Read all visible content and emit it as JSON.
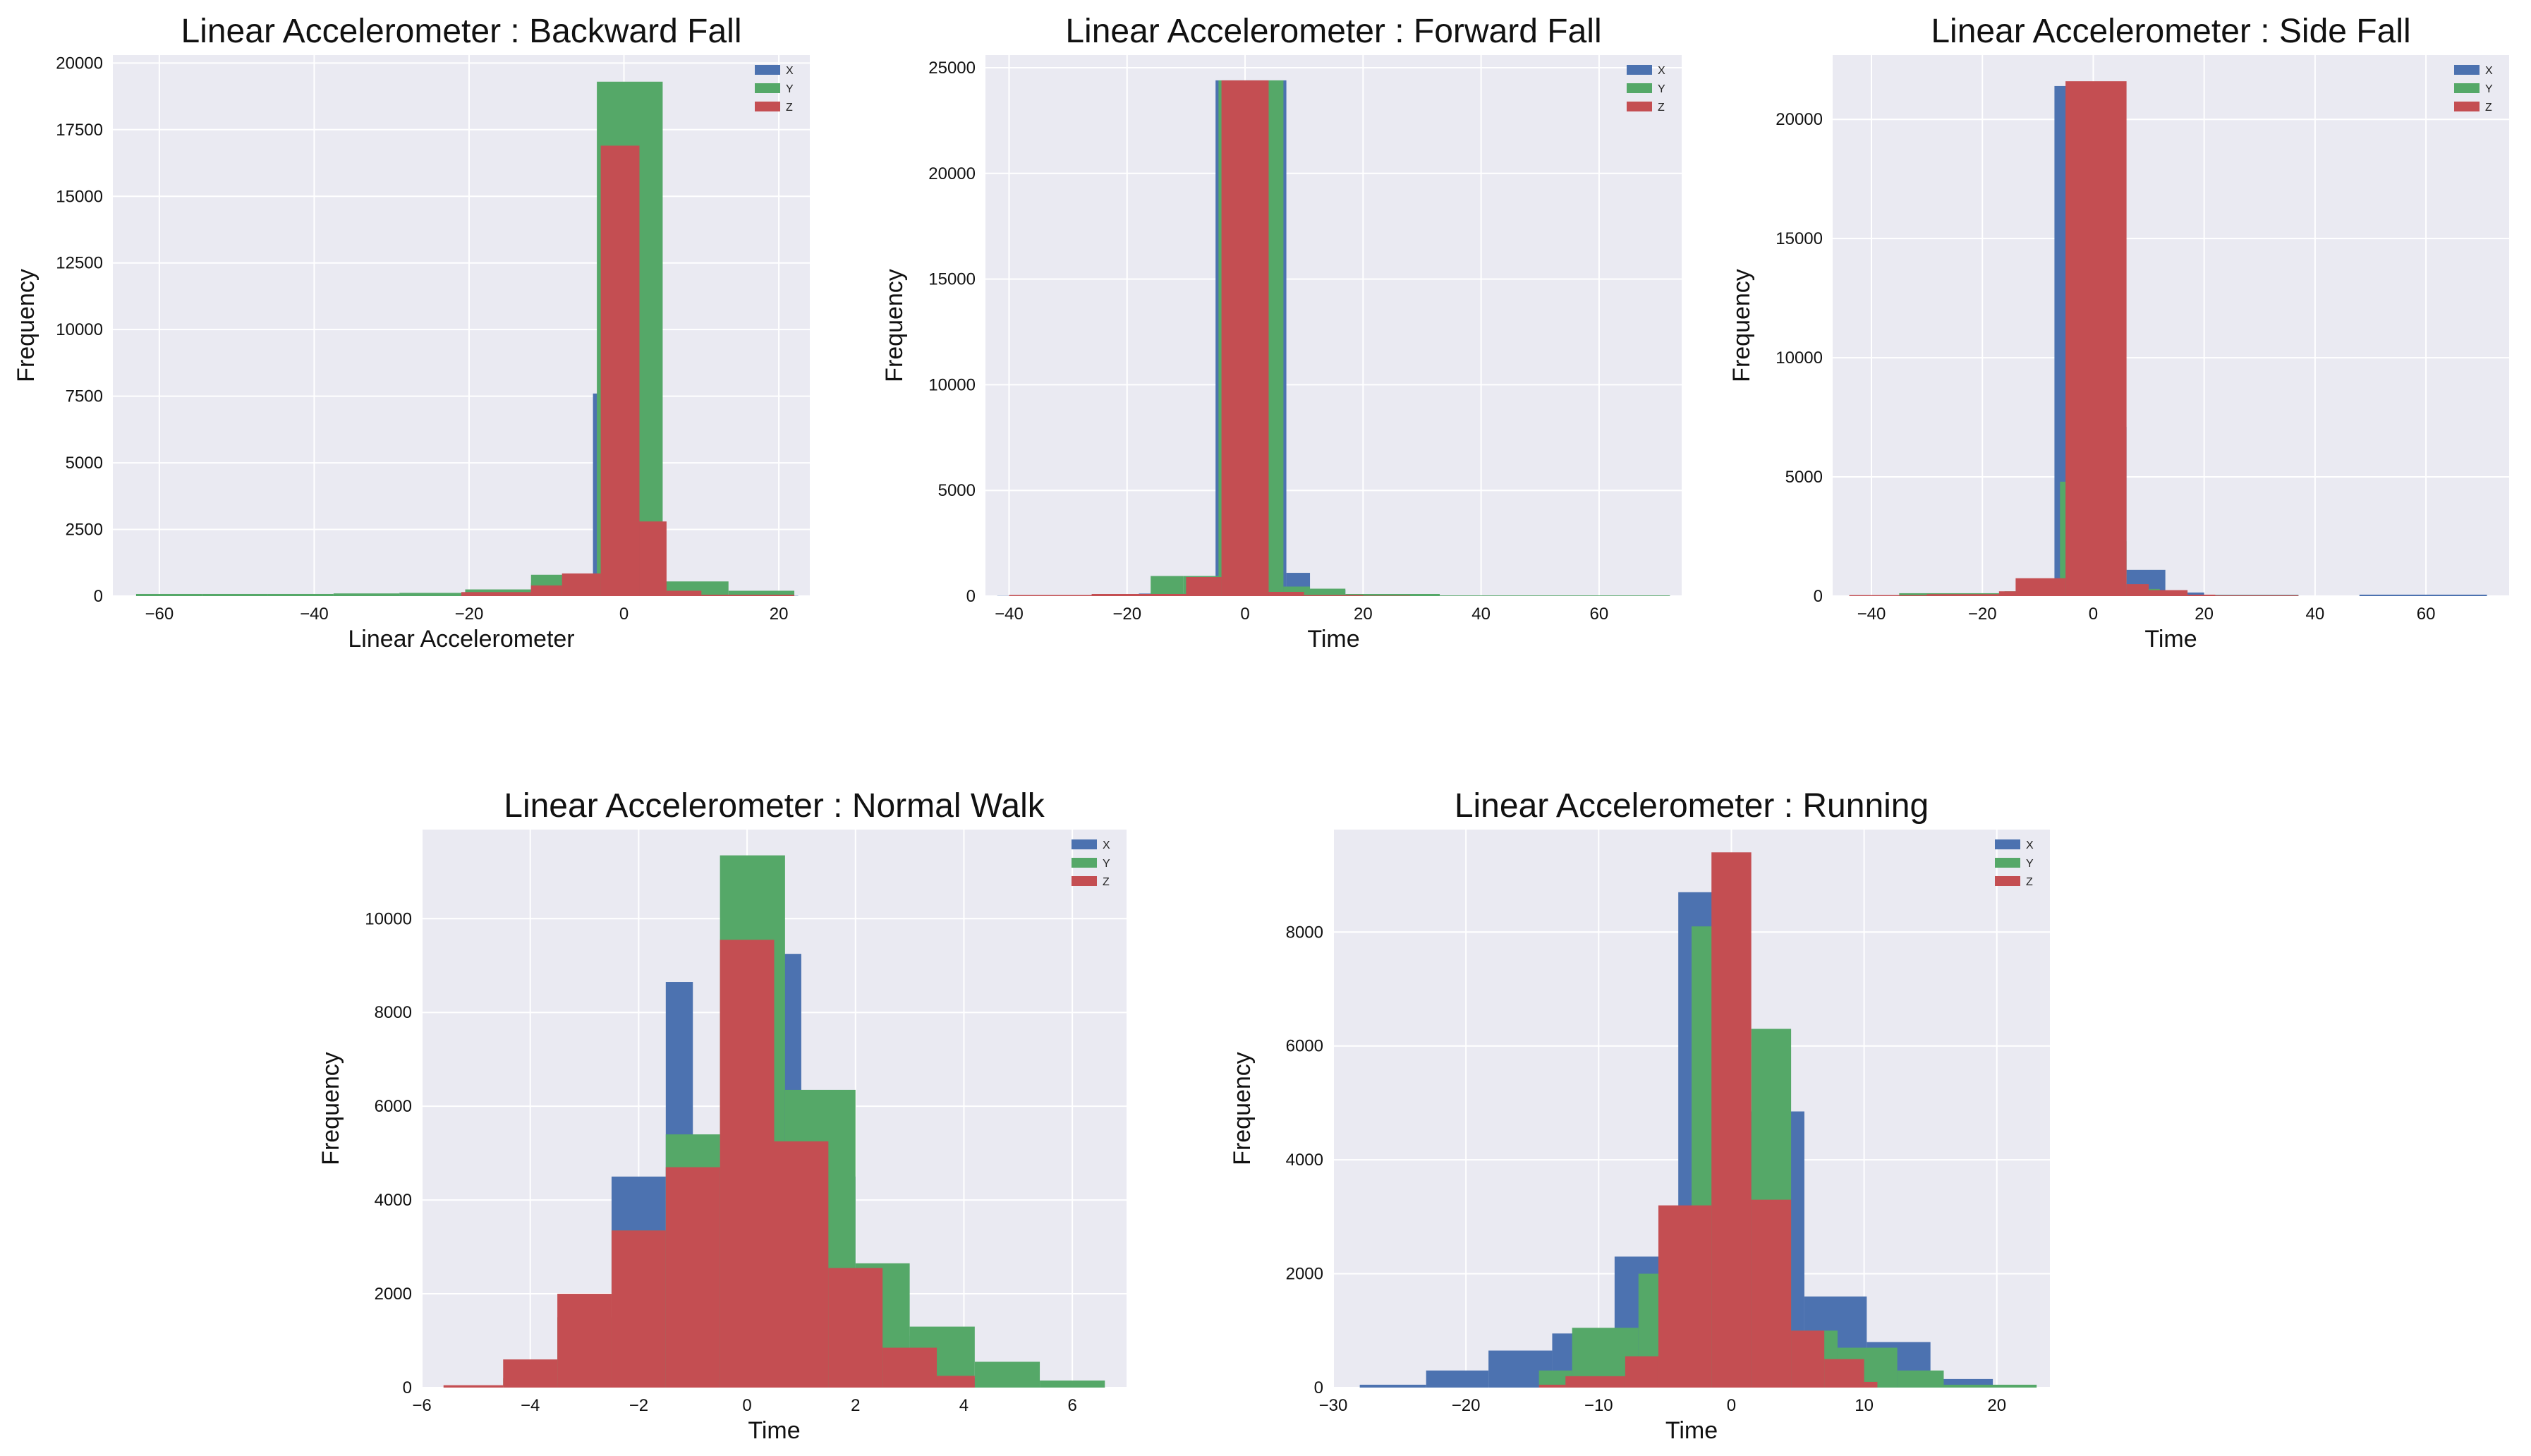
{
  "colors": {
    "X": "#4c72b0",
    "Y": "#55a868",
    "Z": "#c44e52",
    "plot_bg": "#eaeaf2",
    "grid": "#ffffff"
  },
  "chart_data": [
    {
      "type": "bar",
      "title": "Linear Accelerometer : Backward Fall",
      "xlabel": "Linear Accelerometer",
      "ylabel": "Frequency",
      "xlim": [
        -66,
        24
      ],
      "ylim": [
        0,
        20300
      ],
      "xticks": [
        -60,
        -40,
        -20,
        0,
        20
      ],
      "yticks": [
        0,
        2500,
        5000,
        7500,
        10000,
        12500,
        15000,
        17500,
        20000
      ],
      "legend": [
        "X",
        "Y",
        "Z"
      ],
      "series": [
        {
          "name": "X",
          "bins": [
            [
              -63.0,
              -54.5,
              10
            ],
            [
              -54.5,
              -46.0,
              8
            ],
            [
              -46.0,
              -37.5,
              15
            ],
            [
              -37.5,
              -29.0,
              30
            ],
            [
              -29.0,
              -20.5,
              60
            ],
            [
              -20.5,
              -12.0,
              180
            ],
            [
              -12.0,
              -4.0,
              500
            ],
            [
              -4.0,
              -3.0,
              7600
            ],
            [
              -3.0,
              3.5,
              7600
            ],
            [
              3.5,
              12.0,
              300
            ],
            [
              12.0,
              20.5,
              50
            ],
            [
              20.5,
              22.5,
              10
            ]
          ]
        },
        {
          "name": "Y",
          "bins": [
            [
              -63.0,
              -54.5,
              80
            ],
            [
              -54.5,
              -46.0,
              80
            ],
            [
              -46.0,
              -37.5,
              80
            ],
            [
              -37.5,
              -29.0,
              100
            ],
            [
              -29.0,
              -20.5,
              120
            ],
            [
              -20.5,
              -12.0,
              250
            ],
            [
              -12.0,
              -7.0,
              800
            ],
            [
              -7.0,
              -3.5,
              800
            ],
            [
              -3.5,
              5.0,
              19300
            ],
            [
              5.0,
              13.5,
              550
            ],
            [
              13.5,
              22.0,
              200
            ]
          ]
        },
        {
          "name": "Z",
          "bins": [
            [
              -21.0,
              -12.0,
              150
            ],
            [
              -12.0,
              -8.0,
              400
            ],
            [
              -8.0,
              -3.0,
              850
            ],
            [
              -3.0,
              2.0,
              16900
            ],
            [
              2.0,
              5.5,
              2800
            ],
            [
              5.5,
              10.0,
              200
            ],
            [
              10.0,
              22.0,
              50
            ]
          ]
        }
      ]
    },
    {
      "type": "bar",
      "title": "Linear Accelerometer : Forward Fall",
      "xlabel": "Time",
      "ylabel": "Frequency",
      "xlim": [
        -44,
        74
      ],
      "ylim": [
        0,
        25600
      ],
      "xticks": [
        -40,
        -20,
        0,
        20,
        40,
        60
      ],
      "yticks": [
        0,
        5000,
        10000,
        15000,
        20000,
        25000
      ],
      "legend": [
        "X",
        "Y",
        "Z"
      ],
      "series": [
        {
          "name": "X",
          "bins": [
            [
              -42.0,
              -30.0,
              10
            ],
            [
              -30.0,
              -18.0,
              30
            ],
            [
              -18.0,
              -10.0,
              120
            ],
            [
              -10.0,
              -5.0,
              600
            ],
            [
              -5.0,
              7.0,
              24400
            ],
            [
              7.0,
              11.0,
              1100
            ],
            [
              11.0,
              17.0,
              300
            ],
            [
              17.0,
              26.0,
              50
            ],
            [
              26.0,
              72.0,
              10
            ]
          ]
        },
        {
          "name": "Y",
          "bins": [
            [
              -40.0,
              -24.0,
              20
            ],
            [
              -24.0,
              -16.0,
              100
            ],
            [
              -16.0,
              -10.5,
              950
            ],
            [
              -10.5,
              -4.5,
              950
            ],
            [
              -4.5,
              6.5,
              24400
            ],
            [
              6.5,
              11.0,
              450
            ],
            [
              11.0,
              17.0,
              350
            ],
            [
              17.0,
              33.0,
              100
            ],
            [
              33.0,
              72.0,
              30
            ]
          ]
        },
        {
          "name": "Z",
          "bins": [
            [
              -40.0,
              -26.0,
              50
            ],
            [
              -26.0,
              -10.0,
              100
            ],
            [
              -10.0,
              -4.0,
              900
            ],
            [
              -4.0,
              4.0,
              24400
            ],
            [
              4.0,
              10.0,
              200
            ],
            [
              10.0,
              20.0,
              50
            ],
            [
              20.0,
              28.0,
              20
            ]
          ]
        }
      ]
    },
    {
      "type": "bar",
      "title": "Linear Accelerometer : Side Fall",
      "xlabel": "Time",
      "ylabel": "Frequency",
      "xlim": [
        -47,
        75
      ],
      "ylim": [
        0,
        22700
      ],
      "xticks": [
        -40,
        -20,
        0,
        20,
        40,
        60
      ],
      "yticks": [
        0,
        5000,
        10000,
        15000,
        20000
      ],
      "legend": [
        "X",
        "Y",
        "Z"
      ],
      "series": [
        {
          "name": "X",
          "bins": [
            [
              -44.0,
              -35.0,
              20
            ],
            [
              -35.0,
              -18.0,
              40
            ],
            [
              -18.0,
              -10.0,
              100
            ],
            [
              -10.0,
              -7.0,
              400
            ],
            [
              -7.0,
              -4.0,
              21400
            ],
            [
              -4.0,
              6.0,
              7100
            ],
            [
              6.0,
              13.0,
              1100
            ],
            [
              13.0,
              20.0,
              150
            ],
            [
              20.0,
              37.0,
              50
            ],
            [
              48.0,
              71.0,
              60
            ]
          ]
        },
        {
          "name": "Y",
          "bins": [
            [
              -44.0,
              -35.0,
              30
            ],
            [
              -35.0,
              -16.0,
              120
            ],
            [
              -16.0,
              -12.0,
              200
            ],
            [
              -12.0,
              -6.0,
              600
            ],
            [
              -6.0,
              -4.0,
              4800
            ],
            [
              -4.0,
              6.0,
              2300
            ],
            [
              6.0,
              12.0,
              300
            ],
            [
              12.0,
              16.0,
              100
            ],
            [
              16.0,
              37.0,
              40
            ]
          ]
        },
        {
          "name": "Z",
          "bins": [
            [
              -44.0,
              -30.0,
              40
            ],
            [
              -30.0,
              -17.0,
              80
            ],
            [
              -17.0,
              -14.0,
              200
            ],
            [
              -14.0,
              -5.0,
              750
            ],
            [
              -5.0,
              6.0,
              21600
            ],
            [
              6.0,
              10.0,
              500
            ],
            [
              10.0,
              17.0,
              250
            ],
            [
              17.0,
              22.0,
              60
            ],
            [
              22.0,
              37.0,
              30
            ]
          ]
        }
      ]
    },
    {
      "type": "bar",
      "title": "Linear Accelerometer : Normal Walk",
      "xlabel": "Time",
      "ylabel": "Frequency",
      "xlim": [
        -6,
        7
      ],
      "ylim": [
        0,
        11900
      ],
      "xticks": [
        -6,
        -4,
        -2,
        0,
        2,
        4,
        6
      ],
      "yticks": [
        0,
        2000,
        4000,
        6000,
        8000,
        10000
      ],
      "legend": [
        "X",
        "Y",
        "Z"
      ],
      "series": [
        {
          "name": "X",
          "bins": [
            [
              -4.0,
              -2.5,
              100
            ],
            [
              -2.5,
              -1.5,
              4500
            ],
            [
              -1.5,
              -1.0,
              8650
            ],
            [
              -1.0,
              0.5,
              4700
            ],
            [
              0.5,
              1.0,
              9250
            ],
            [
              1.0,
              2.0,
              4500
            ],
            [
              2.0,
              3.0,
              1100
            ],
            [
              3.0,
              4.5,
              200
            ]
          ]
        },
        {
          "name": "Y",
          "bins": [
            [
              -4.5,
              -3.5,
              200
            ],
            [
              -3.5,
              -2.5,
              1500
            ],
            [
              -2.5,
              -1.5,
              3350
            ],
            [
              -1.5,
              -0.5,
              5400
            ],
            [
              -0.5,
              0.7,
              11350
            ],
            [
              0.7,
              2.0,
              6350
            ],
            [
              2.0,
              3.0,
              2650
            ],
            [
              3.0,
              4.2,
              1300
            ],
            [
              4.2,
              5.4,
              550
            ],
            [
              5.4,
              6.6,
              150
            ]
          ]
        },
        {
          "name": "Z",
          "bins": [
            [
              -5.6,
              -4.5,
              50
            ],
            [
              -4.5,
              -3.5,
              600
            ],
            [
              -3.5,
              -2.5,
              2000
            ],
            [
              -2.5,
              -1.5,
              3350
            ],
            [
              -1.5,
              -0.5,
              4700
            ],
            [
              -0.5,
              0.5,
              9550
            ],
            [
              0.5,
              1.5,
              5250
            ],
            [
              1.5,
              2.5,
              2550
            ],
            [
              2.5,
              3.5,
              850
            ],
            [
              3.5,
              4.2,
              250
            ]
          ]
        }
      ]
    },
    {
      "type": "bar",
      "title": "Linear Accelerometer : Running",
      "xlabel": "Time",
      "ylabel": "Frequency",
      "xlim": [
        -30,
        24
      ],
      "ylim": [
        0,
        9800
      ],
      "xticks": [
        -30,
        -20,
        -10,
        0,
        10,
        20
      ],
      "yticks": [
        0,
        2000,
        4000,
        6000,
        8000
      ],
      "legend": [
        "X",
        "Y",
        "Z"
      ],
      "series": [
        {
          "name": "X",
          "bins": [
            [
              -28.0,
              -23.0,
              50
            ],
            [
              -23.0,
              -18.3,
              300
            ],
            [
              -18.3,
              -13.5,
              650
            ],
            [
              -13.5,
              -8.8,
              950
            ],
            [
              -8.8,
              -4.0,
              2300
            ],
            [
              -4.0,
              0.8,
              8700
            ],
            [
              0.8,
              5.5,
              4850
            ],
            [
              5.5,
              10.2,
              1600
            ],
            [
              10.2,
              15.0,
              800
            ],
            [
              15.0,
              19.7,
              150
            ]
          ]
        },
        {
          "name": "Y",
          "bins": [
            [
              -14.5,
              -12.0,
              300
            ],
            [
              -12.0,
              -7.0,
              1050
            ],
            [
              -7.0,
              -3.0,
              2000
            ],
            [
              -3.0,
              -1.0,
              8100
            ],
            [
              -1.0,
              1.5,
              3000
            ],
            [
              1.5,
              4.5,
              6300
            ],
            [
              4.5,
              8.0,
              1000
            ],
            [
              8.0,
              12.5,
              700
            ],
            [
              12.5,
              16.0,
              300
            ],
            [
              16.0,
              23.0,
              50
            ]
          ]
        },
        {
          "name": "Z",
          "bins": [
            [
              -14.5,
              -12.5,
              50
            ],
            [
              -12.5,
              -8.0,
              200
            ],
            [
              -8.0,
              -5.5,
              550
            ],
            [
              -5.5,
              -1.5,
              3200
            ],
            [
              -1.5,
              1.5,
              9400
            ],
            [
              1.5,
              4.5,
              3300
            ],
            [
              4.5,
              7.0,
              1000
            ],
            [
              7.0,
              10.0,
              500
            ],
            [
              10.0,
              11.0,
              100
            ]
          ]
        }
      ]
    }
  ]
}
